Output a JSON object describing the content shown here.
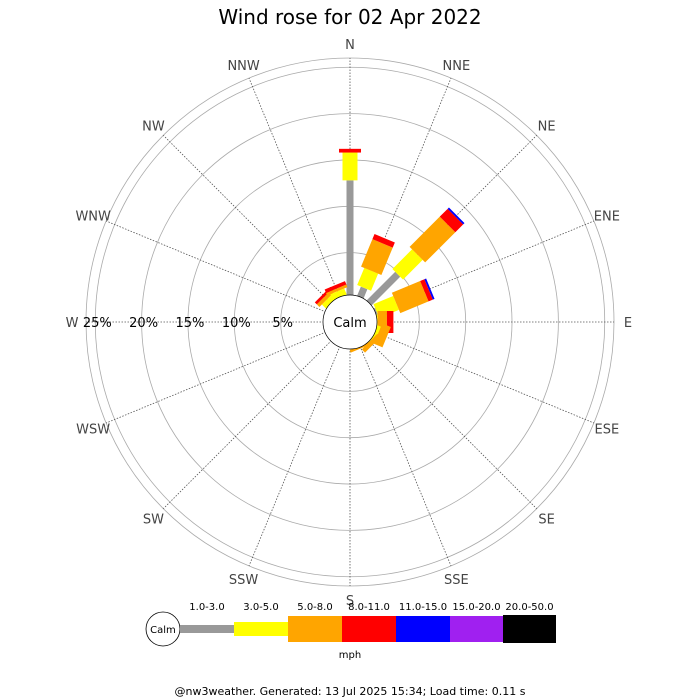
{
  "chart_data": {
    "type": "wind-rose",
    "title": "Wind rose for 02 Apr 2022",
    "directions": [
      "N",
      "NNE",
      "NE",
      "ENE",
      "E",
      "ESE",
      "SE",
      "SSE",
      "S",
      "SSW",
      "SW",
      "WSW",
      "W",
      "WNW",
      "NW",
      "NNW"
    ],
    "ring_labels": [
      "25%",
      "20%",
      "15%",
      "10%",
      "5%"
    ],
    "rings_percent": [
      5,
      10,
      15,
      20,
      25
    ],
    "radial_max_percent": 26,
    "calm_label": "Calm",
    "unit": "mph",
    "speed_bins": [
      {
        "label": "1.0-3.0",
        "color": "#999999"
      },
      {
        "label": "3.0-5.0",
        "color": "#ffff00"
      },
      {
        "label": "5.0-8.0",
        "color": "#ffa500"
      },
      {
        "label": "8.0-11.0",
        "color": "#ff0000"
      },
      {
        "label": "11.0-15.0",
        "color": "#0000ff"
      },
      {
        "label": "15.0-20.0",
        "color": "#a020f0"
      },
      {
        "label": "20.0-50.0",
        "color": "#000000"
      }
    ],
    "series": [
      {
        "direction": "N",
        "values": [
          12.8,
          3.0,
          0.0,
          0.4,
          0,
          0,
          0
        ]
      },
      {
        "direction": "NNE",
        "values": [
          1.5,
          2.0,
          3.2,
          0.6,
          0,
          0,
          0
        ]
      },
      {
        "direction": "NE",
        "values": [
          4.8,
          3.0,
          4.6,
          1.2,
          0.2,
          0,
          0
        ]
      },
      {
        "direction": "ENE",
        "values": [
          0.6,
          2.3,
          3.3,
          0.5,
          0.2,
          0,
          0
        ]
      },
      {
        "direction": "E",
        "values": [
          0.2,
          0.3,
          1.0,
          0.7,
          0,
          0,
          0
        ]
      },
      {
        "direction": "ESE",
        "values": [
          0.3,
          0.5,
          1.0,
          0,
          0,
          0,
          0
        ]
      },
      {
        "direction": "SE",
        "values": [
          0.2,
          0.3,
          0.5,
          0,
          0,
          0,
          0
        ]
      },
      {
        "direction": "SSE",
        "values": [
          0.1,
          0.2,
          0.3,
          0,
          0,
          0,
          0
        ]
      },
      {
        "direction": "S",
        "values": [
          0,
          0,
          0,
          0,
          0,
          0,
          0
        ]
      },
      {
        "direction": "SSW",
        "values": [
          0,
          0,
          0,
          0,
          0,
          0,
          0
        ]
      },
      {
        "direction": "SW",
        "values": [
          0,
          0,
          0,
          0,
          0,
          0,
          0
        ]
      },
      {
        "direction": "WSW",
        "values": [
          0,
          0,
          0,
          0,
          0,
          0,
          0
        ]
      },
      {
        "direction": "W",
        "values": [
          0,
          0,
          0,
          0,
          0,
          0,
          0
        ]
      },
      {
        "direction": "WNW",
        "values": [
          0,
          0,
          0,
          0,
          0,
          0,
          0
        ]
      },
      {
        "direction": "NW",
        "values": [
          0.2,
          0.8,
          0.4,
          0.3,
          0,
          0,
          0
        ]
      },
      {
        "direction": "NNW",
        "values": [
          0.4,
          0.7,
          0.3,
          0.4,
          0,
          0,
          0
        ]
      }
    ],
    "grid": true
  },
  "footer": "@nw3weather. Generated: 13 Jul 2025 15:34; Load time: 0.11 s"
}
